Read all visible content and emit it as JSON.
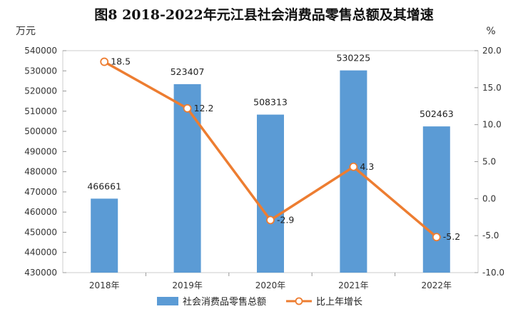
{
  "chart_data": {
    "type": "bar+line",
    "title": "图8    2018-2022年元江县社会消费品零售总额及其增速",
    "categories": [
      "2018年",
      "2019年",
      "2020年",
      "2021年",
      "2022年"
    ],
    "series": [
      {
        "name": "社会消费品零售总额",
        "type": "bar",
        "axis": "left",
        "color": "#5b9bd5",
        "values": [
          466661,
          523407,
          508313,
          530225,
          502463
        ],
        "labels": [
          "466661",
          "523407",
          "508313",
          "530225",
          "502463"
        ]
      },
      {
        "name": "比上年增长",
        "type": "line",
        "axis": "right",
        "color": "#ed7d31",
        "values": [
          18.5,
          12.2,
          -2.9,
          4.3,
          -5.2
        ],
        "labels": [
          "18.5",
          "12.2",
          "-2.9",
          "4.3",
          "-5.2"
        ]
      }
    ],
    "left_axis": {
      "unit": "万元",
      "range": [
        430000,
        540000
      ],
      "ticks": [
        "430000",
        "440000",
        "450000",
        "460000",
        "470000",
        "480000",
        "490000",
        "500000",
        "510000",
        "520000",
        "530000",
        "540000"
      ]
    },
    "right_axis": {
      "unit": "%",
      "range": [
        -10,
        20
      ],
      "ticks": [
        "-10.0",
        "-5.0",
        "0.0",
        "5.0",
        "10.0",
        "15.0",
        "20.0"
      ]
    },
    "legend_position": "bottom-center",
    "grid": false
  }
}
